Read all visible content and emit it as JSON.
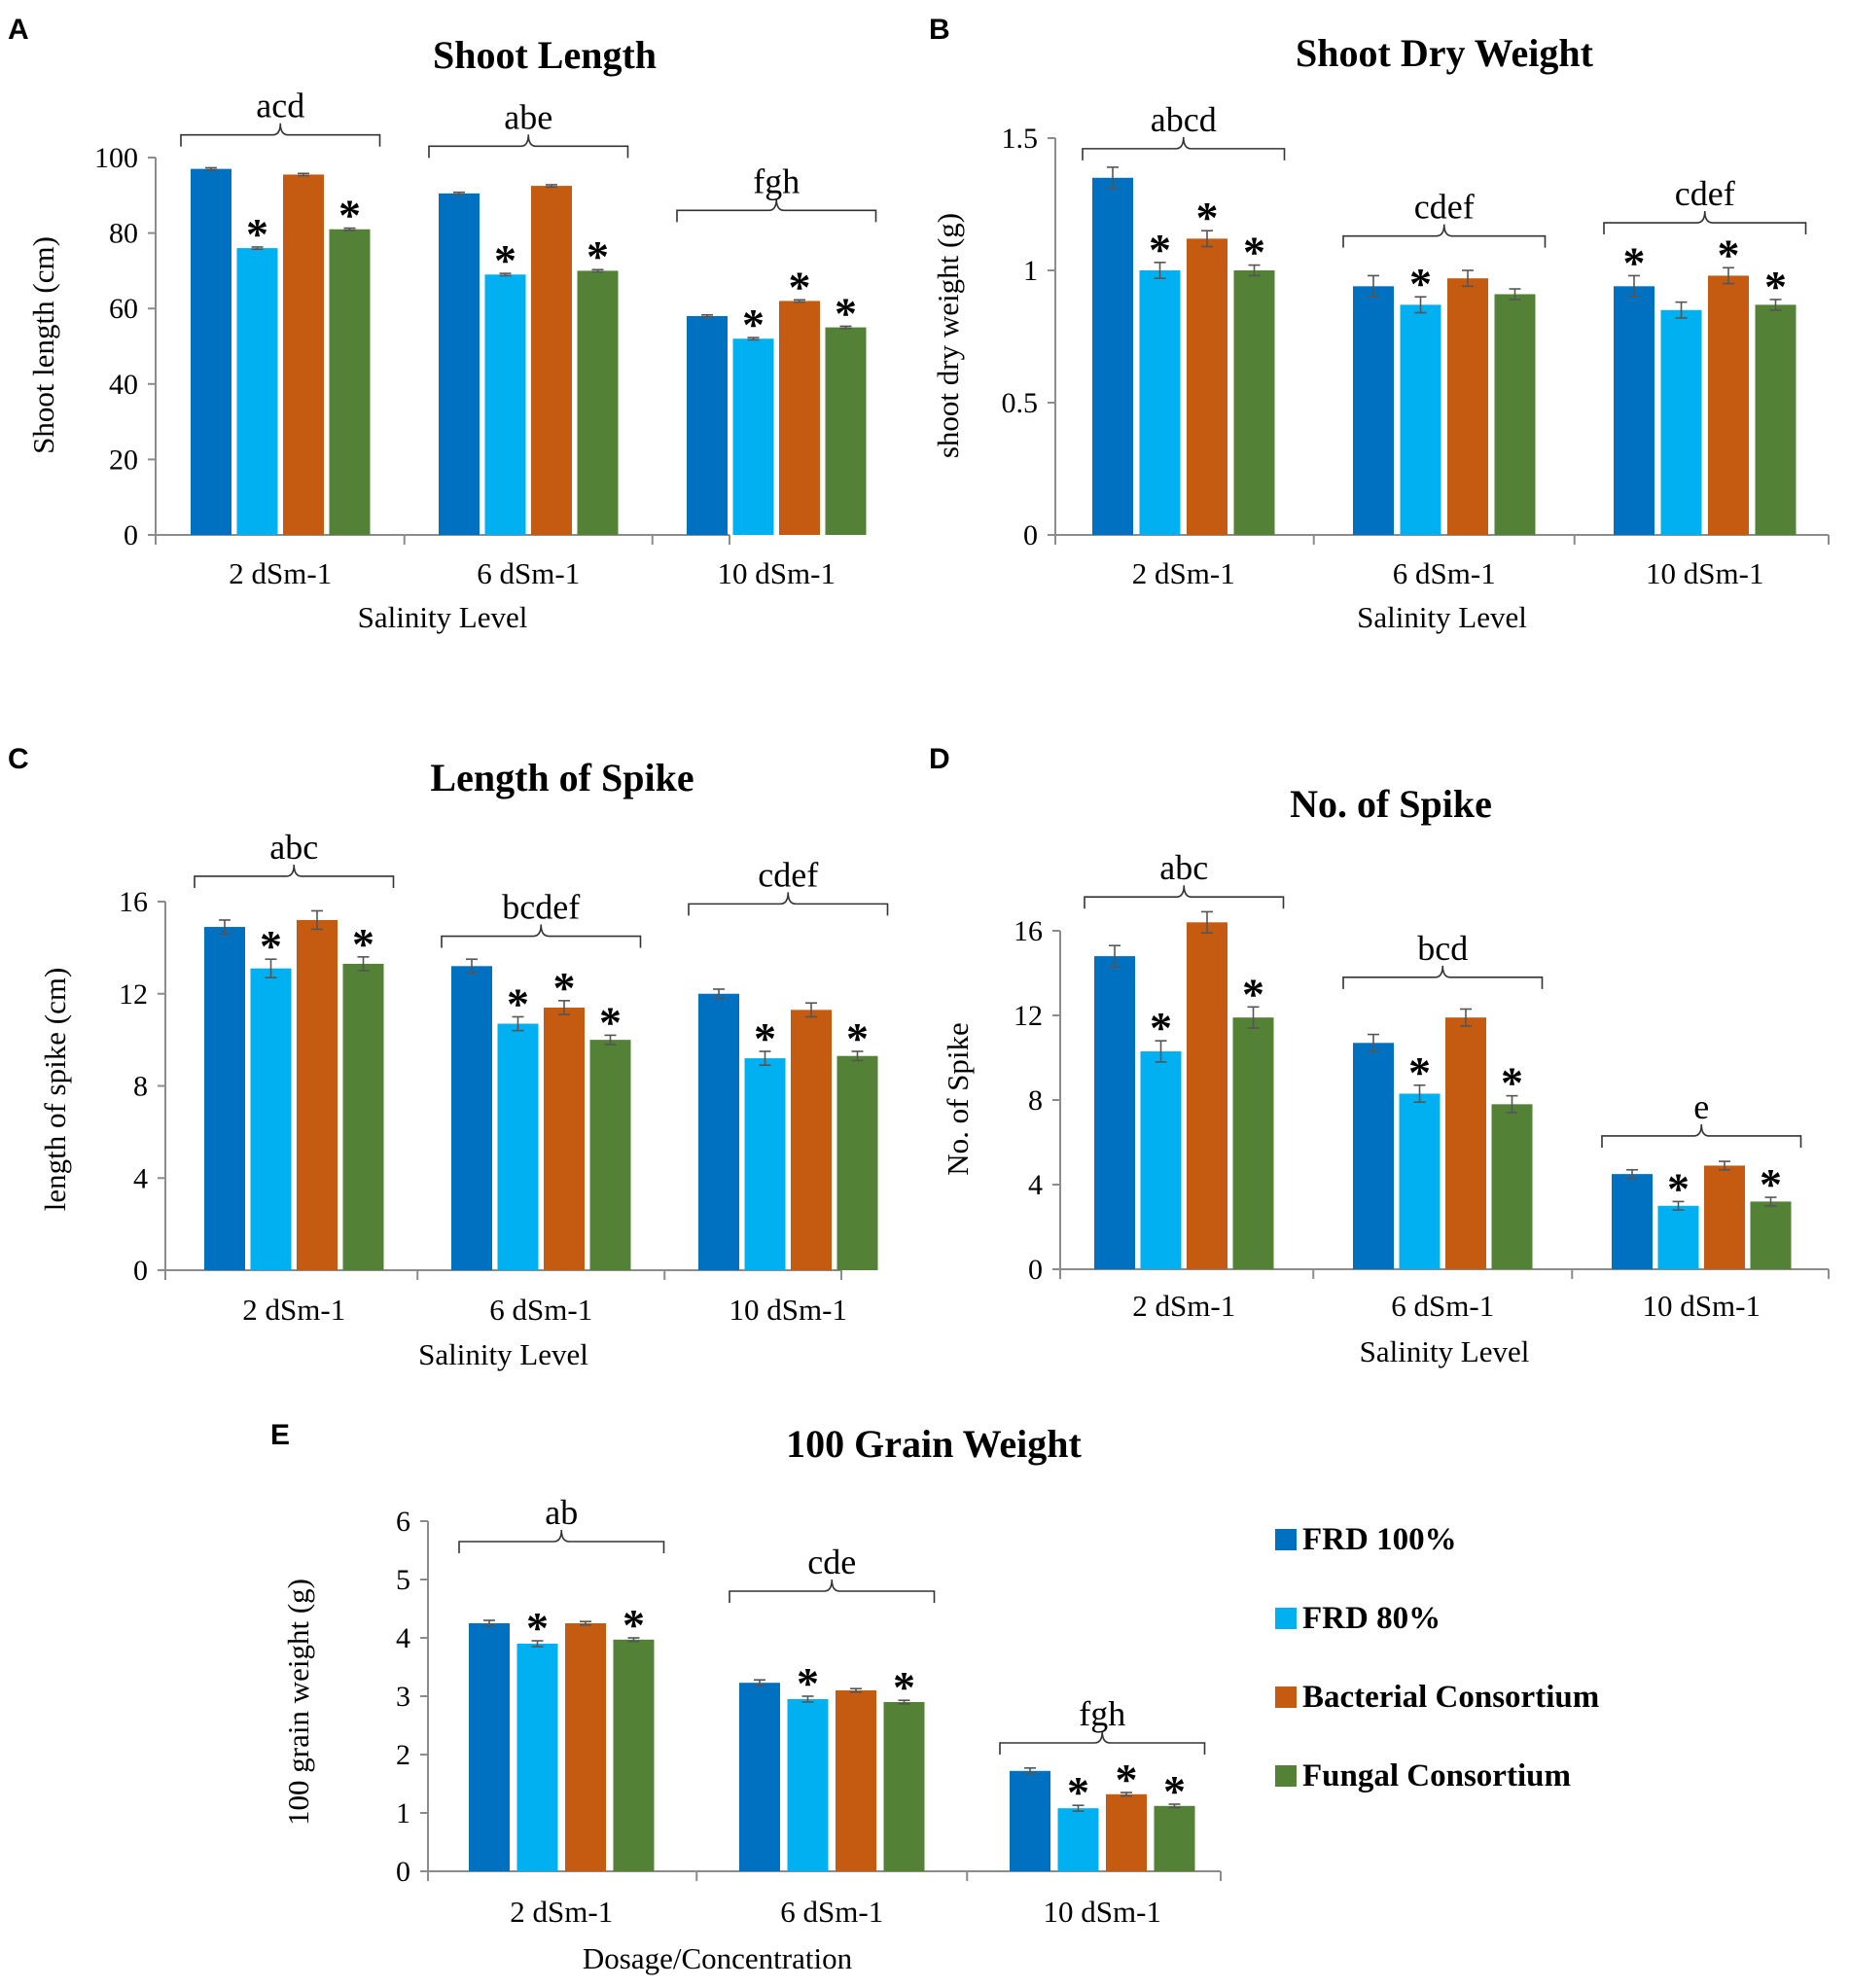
{
  "series": [
    {
      "name": "FRD 100%",
      "color": "#0070C0"
    },
    {
      "name": "FRD 80%",
      "color": "#00B0F0"
    },
    {
      "name": "Bacterial Consortium",
      "color": "#C55A11"
    },
    {
      "name": "Fungal Consortium",
      "color": "#538135"
    }
  ],
  "chart_data": [
    {
      "panel": "A",
      "type": "bar",
      "title": "Shoot Length",
      "ylabel": "Shoot length (cm)",
      "xlabel": "Salinity Level",
      "ylim": [
        0,
        100
      ],
      "yticks": [
        "0",
        "20",
        "40",
        "60",
        "80",
        "100"
      ],
      "categories": [
        "2 dSm-1",
        "6 dSm-1",
        "10 dSm-1"
      ],
      "series": [
        {
          "name": "FRD 100%",
          "values": [
            97,
            90.5,
            58
          ]
        },
        {
          "name": "FRD 80%",
          "values": [
            76,
            69,
            52
          ]
        },
        {
          "name": "Bacterial Consortium",
          "values": [
            95.5,
            92.5,
            62
          ]
        },
        {
          "name": "Fungal Consortium",
          "values": [
            81,
            70,
            55
          ]
        }
      ],
      "errors": [
        [
          0.3,
          0.3,
          0.3
        ],
        [
          0.3,
          0.3,
          0.3
        ],
        [
          0.3,
          0.3,
          0.3
        ],
        [
          0.3,
          0.3,
          0.3
        ]
      ],
      "stars": [
        [
          false,
          false,
          false
        ],
        [
          true,
          true,
          true
        ],
        [
          false,
          false,
          true
        ],
        [
          true,
          true,
          true
        ]
      ],
      "group_letters": [
        "acd",
        "abe",
        "fgh"
      ],
      "brace_values": [
        106,
        103,
        86
      ]
    },
    {
      "panel": "B",
      "type": "bar",
      "title": "Shoot Dry Weight",
      "ylabel": "shoot dry weight (g)",
      "xlabel": "Salinity Level",
      "ylim": [
        0,
        1.5
      ],
      "yticks": [
        "0",
        "0.5",
        "1",
        "1.5"
      ],
      "categories": [
        "2 dSm-1",
        "6 dSm-1",
        "10 dSm-1"
      ],
      "series": [
        {
          "name": "FRD 100%",
          "values": [
            1.35,
            0.94,
            0.94
          ]
        },
        {
          "name": "FRD 80%",
          "values": [
            1.0,
            0.87,
            0.85
          ]
        },
        {
          "name": "Bacterial Consortium",
          "values": [
            1.12,
            0.97,
            0.98
          ]
        },
        {
          "name": "Fungal Consortium",
          "values": [
            1.0,
            0.91,
            0.87
          ]
        }
      ],
      "errors": [
        [
          0.04,
          0.04,
          0.04
        ],
        [
          0.03,
          0.03,
          0.03
        ],
        [
          0.03,
          0.03,
          0.03
        ],
        [
          0.02,
          0.02,
          0.02
        ]
      ],
      "stars": [
        [
          false,
          false,
          true
        ],
        [
          true,
          true,
          false
        ],
        [
          true,
          false,
          true
        ],
        [
          true,
          false,
          true
        ]
      ],
      "group_letters": [
        "abcd",
        "cdef",
        "cdef"
      ],
      "brace_values": [
        1.46,
        1.13,
        1.18
      ]
    },
    {
      "panel": "C",
      "type": "bar",
      "title": "Length of Spike",
      "ylabel": "length of spike (cm)",
      "xlabel": "Salinity Level",
      "ylim": [
        0,
        16
      ],
      "yticks": [
        "0",
        "4",
        "8",
        "12",
        "16"
      ],
      "categories": [
        "2 dSm-1",
        "6 dSm-1",
        "10 dSm-1"
      ],
      "series": [
        {
          "name": "FRD 100%",
          "values": [
            14.9,
            13.2,
            12.0
          ]
        },
        {
          "name": "FRD 80%",
          "values": [
            13.1,
            10.7,
            9.2
          ]
        },
        {
          "name": "Bacterial Consortium",
          "values": [
            15.2,
            11.4,
            11.3
          ]
        },
        {
          "name": "Fungal Consortium",
          "values": [
            13.3,
            10.0,
            9.3
          ]
        }
      ],
      "errors": [
        [
          0.3,
          0.3,
          0.2
        ],
        [
          0.4,
          0.3,
          0.3
        ],
        [
          0.4,
          0.3,
          0.3
        ],
        [
          0.3,
          0.2,
          0.2
        ]
      ],
      "stars": [
        [
          false,
          false,
          false
        ],
        [
          true,
          true,
          true
        ],
        [
          false,
          true,
          false
        ],
        [
          true,
          true,
          true
        ]
      ],
      "group_letters": [
        "abc",
        "bcdef",
        "cdef"
      ],
      "brace_values": [
        17.1,
        14.5,
        15.9
      ]
    },
    {
      "panel": "D",
      "type": "bar",
      "title": "No. of Spike",
      "ylabel": "No. of Spike",
      "xlabel": "Salinity Level",
      "ylim": [
        0,
        16
      ],
      "yticks": [
        "0",
        "4",
        "8",
        "12",
        "16"
      ],
      "categories": [
        "2 dSm-1",
        "6 dSm-1",
        "10 dSm-1"
      ],
      "series": [
        {
          "name": "FRD 100%",
          "values": [
            14.8,
            10.7,
            4.5
          ]
        },
        {
          "name": "FRD 80%",
          "values": [
            10.3,
            8.3,
            3.0
          ]
        },
        {
          "name": "Bacterial Consortium",
          "values": [
            16.4,
            11.9,
            4.9
          ]
        },
        {
          "name": "Fungal Consortium",
          "values": [
            11.9,
            7.8,
            3.2
          ]
        }
      ],
      "errors": [
        [
          0.5,
          0.4,
          0.2
        ],
        [
          0.5,
          0.4,
          0.2
        ],
        [
          0.5,
          0.4,
          0.2
        ],
        [
          0.5,
          0.4,
          0.2
        ]
      ],
      "stars": [
        [
          false,
          false,
          false
        ],
        [
          true,
          true,
          true
        ],
        [
          false,
          false,
          false
        ],
        [
          true,
          true,
          true
        ]
      ],
      "group_letters": [
        "abc",
        "bcd",
        "e"
      ],
      "brace_values": [
        17.6,
        13.8,
        6.3
      ]
    },
    {
      "panel": "E",
      "type": "bar",
      "title": "100 Grain Weight",
      "ylabel": "100 grain weight (g)",
      "xlabel": "Dosage/Concentration",
      "ylim": [
        0,
        6
      ],
      "yticks": [
        "0",
        "1",
        "2",
        "3",
        "4",
        "5",
        "6"
      ],
      "categories": [
        "2 dSm-1",
        "6 dSm-1",
        "10 dSm-1"
      ],
      "series": [
        {
          "name": "FRD 100%",
          "values": [
            4.25,
            3.23,
            1.72
          ]
        },
        {
          "name": "FRD 80%",
          "values": [
            3.9,
            2.95,
            1.08
          ]
        },
        {
          "name": "Bacterial Consortium",
          "values": [
            4.25,
            3.1,
            1.32
          ]
        },
        {
          "name": "Fungal Consortium",
          "values": [
            3.97,
            2.9,
            1.12
          ]
        }
      ],
      "errors": [
        [
          0.05,
          0.05,
          0.05
        ],
        [
          0.05,
          0.05,
          0.05
        ],
        [
          0.03,
          0.03,
          0.03
        ],
        [
          0.03,
          0.03,
          0.03
        ]
      ],
      "stars": [
        [
          false,
          false,
          false
        ],
        [
          true,
          true,
          true
        ],
        [
          false,
          false,
          true
        ],
        [
          true,
          true,
          true
        ]
      ],
      "group_letters": [
        "ab",
        "cde",
        "fgh"
      ],
      "brace_values": [
        5.65,
        4.8,
        2.2
      ]
    }
  ]
}
